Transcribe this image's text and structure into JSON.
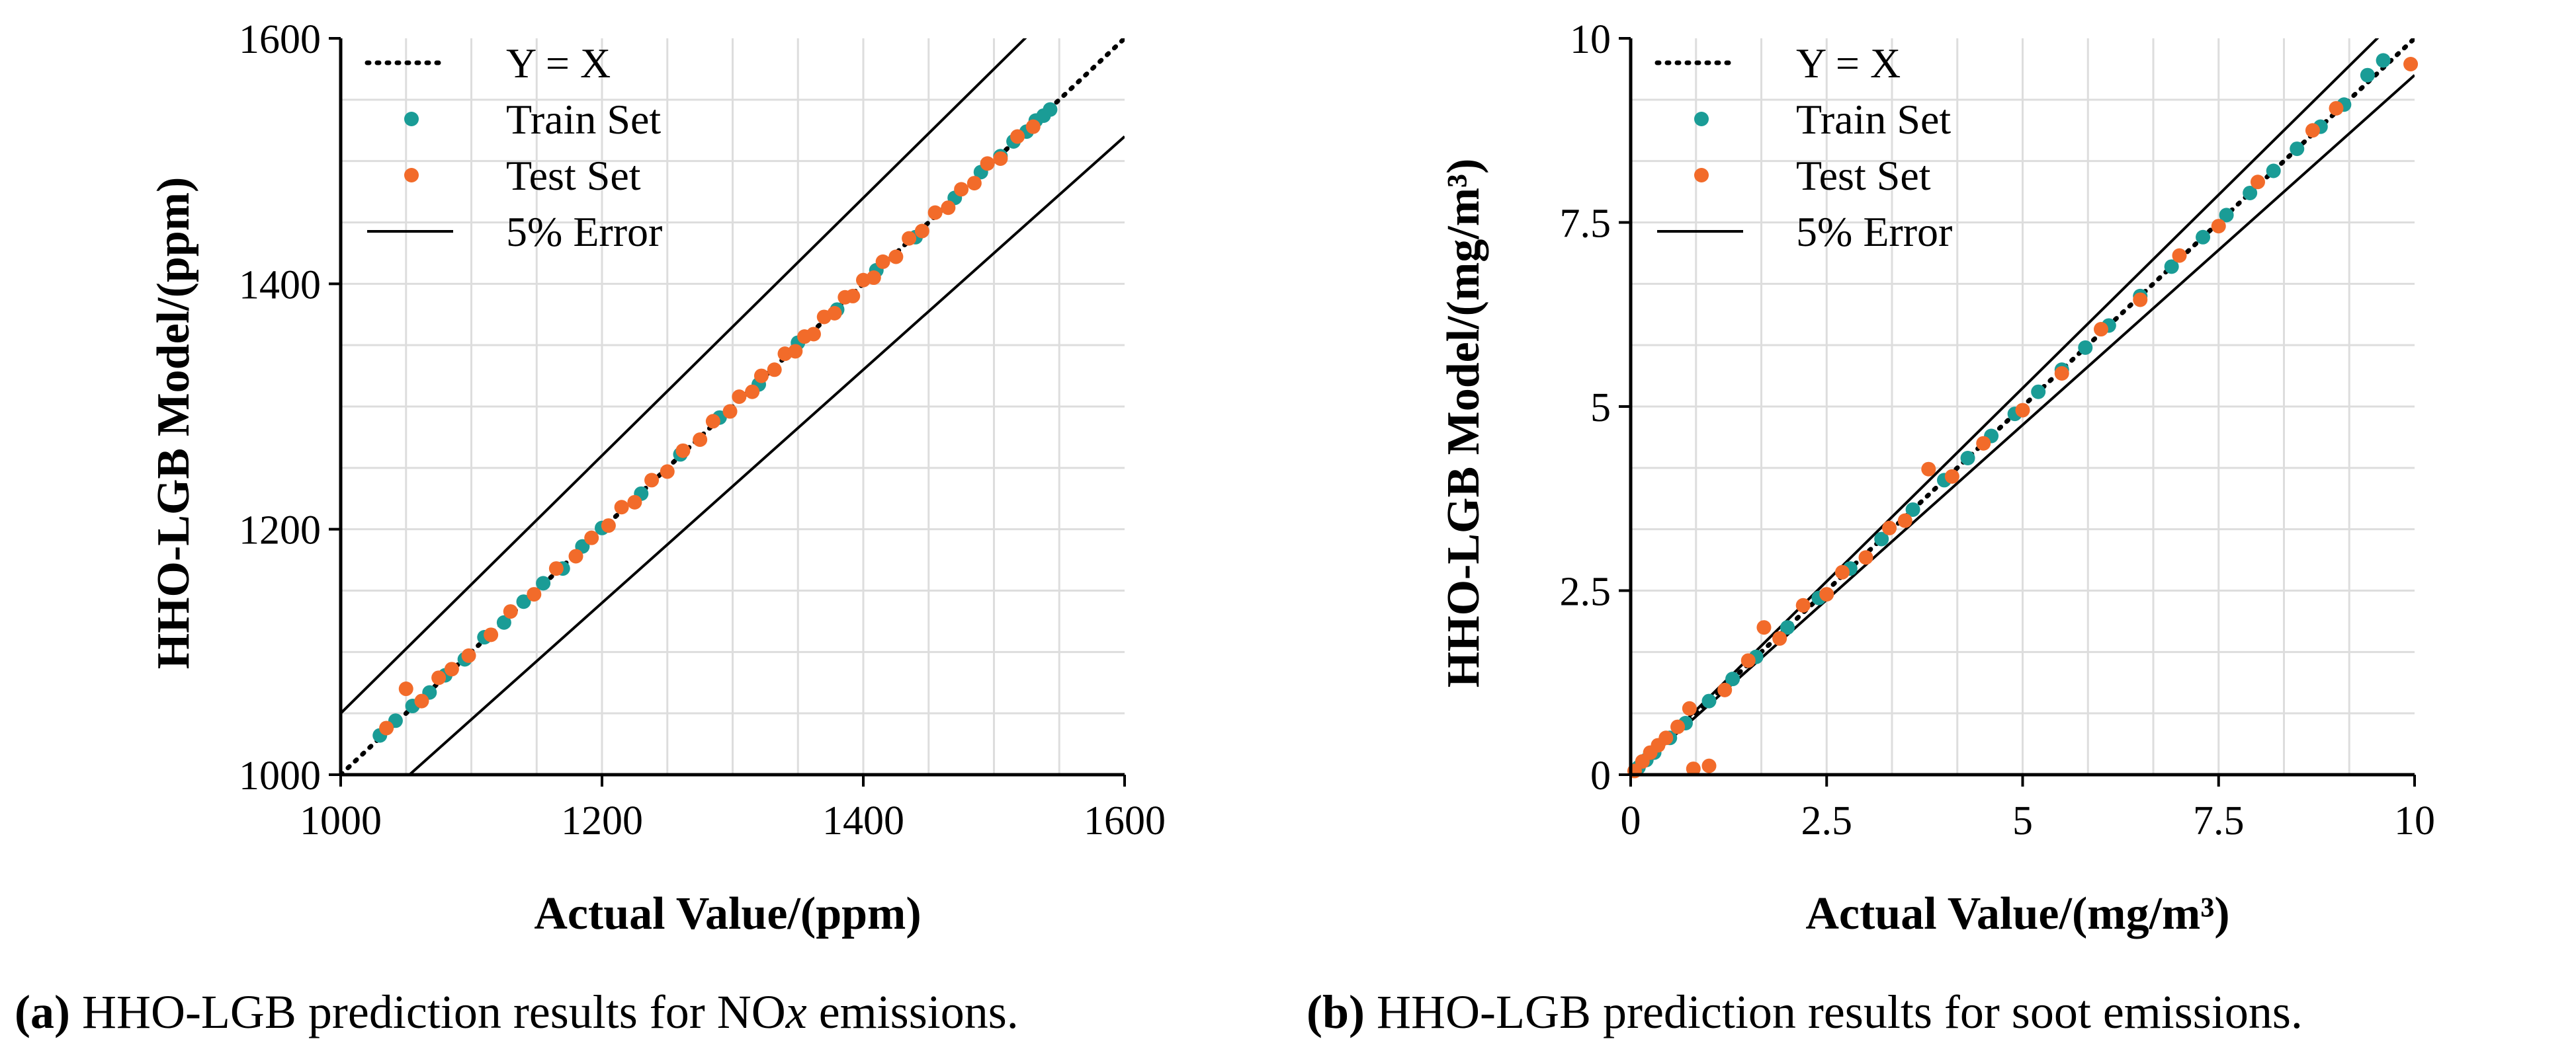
{
  "chart_data": [
    {
      "type": "scatter",
      "panel": "a",
      "xlabel": "Actual Value/(ppm)",
      "ylabel": "HHO-LGB Model/(ppm)",
      "xlim": [
        1000,
        1600
      ],
      "ylim": [
        1000,
        1600
      ],
      "x_ticks": [
        "1000",
        "1200",
        "1400",
        "1600"
      ],
      "y_ticks": [
        "1000",
        "1200",
        "1400",
        "1600"
      ],
      "grid": true,
      "legend_position": "top-left",
      "legend": [
        "Y = X",
        "Train Set",
        "Test Set",
        "5% Error"
      ],
      "series": [
        {
          "name": "Y = X",
          "style": "dotted-line",
          "color": "#000000",
          "x": [
            1000,
            1600
          ],
          "y": [
            1000,
            1600
          ]
        },
        {
          "name": "5% Error",
          "style": "solid-line",
          "color": "#000000",
          "lines": [
            {
              "x": [
                1000,
                1600
              ],
              "y": [
                1050,
                1680
              ]
            },
            {
              "x": [
                1000,
                1600
              ],
              "y": [
                950,
                1520
              ]
            }
          ]
        },
        {
          "name": "Train Set",
          "style": "points",
          "color": "#1a9c96",
          "x": [
            1030,
            1042,
            1055,
            1068,
            1080,
            1095,
            1110,
            1125,
            1140,
            1155,
            1170,
            1185,
            1200,
            1230,
            1260,
            1290,
            1320,
            1350,
            1380,
            1410,
            1440,
            1470,
            1490,
            1505,
            1515,
            1525,
            1532,
            1538,
            1543
          ],
          "y": [
            1032,
            1044,
            1056,
            1067,
            1081,
            1094,
            1112,
            1124,
            1141,
            1156,
            1168,
            1186,
            1201,
            1229,
            1261,
            1291,
            1318,
            1352,
            1379,
            1411,
            1438,
            1470,
            1491,
            1504,
            1516,
            1524,
            1533,
            1537,
            1542
          ]
        },
        {
          "name": "Test Set",
          "style": "points",
          "color": "#f26b2a",
          "x": [
            1035,
            1050,
            1062,
            1075,
            1085,
            1098,
            1115,
            1130,
            1148,
            1165,
            1180,
            1192,
            1205,
            1215,
            1225,
            1238,
            1250,
            1262,
            1275,
            1285,
            1298,
            1305,
            1315,
            1322,
            1332,
            1340,
            1348,
            1355,
            1362,
            1370,
            1378,
            1386,
            1392,
            1400,
            1408,
            1415,
            1425,
            1435,
            1445,
            1455,
            1465,
            1475,
            1485,
            1495,
            1505,
            1518,
            1530
          ],
          "y": [
            1038,
            1070,
            1060,
            1079,
            1086,
            1097,
            1114,
            1133,
            1147,
            1168,
            1178,
            1193,
            1203,
            1218,
            1222,
            1240,
            1247,
            1264,
            1273,
            1288,
            1296,
            1308,
            1312,
            1325,
            1330,
            1343,
            1345,
            1357,
            1359,
            1373,
            1376,
            1389,
            1390,
            1403,
            1405,
            1418,
            1422,
            1437,
            1443,
            1458,
            1462,
            1477,
            1482,
            1498,
            1502,
            1520,
            1528
          ]
        }
      ]
    },
    {
      "type": "scatter",
      "panel": "b",
      "xlabel": "Actual Value/(mg/m³)",
      "ylabel": "HHO-LGB Model/(mg/m³)",
      "xlim": [
        0,
        10
      ],
      "ylim": [
        0,
        10
      ],
      "x_ticks": [
        "0",
        "2.5",
        "5",
        "7.5",
        "10"
      ],
      "y_ticks": [
        "0",
        "2.5",
        "5",
        "7.5",
        "10"
      ],
      "grid": true,
      "legend_position": "top-left",
      "legend": [
        "Y = X",
        "Train Set",
        "Test Set",
        "5% Error"
      ],
      "series": [
        {
          "name": "Y = X",
          "style": "dotted-line",
          "color": "#000000",
          "x": [
            0,
            10
          ],
          "y": [
            0,
            10
          ]
        },
        {
          "name": "5% Error",
          "style": "solid-line",
          "color": "#000000",
          "lines": [
            {
              "x": [
                0,
                10
              ],
              "y": [
                0,
                10.5
              ]
            },
            {
              "x": [
                0,
                10
              ],
              "y": [
                0,
                9.5
              ]
            }
          ]
        },
        {
          "name": "Train Set",
          "style": "points",
          "color": "#1a9c96",
          "x": [
            0.1,
            0.2,
            0.3,
            0.5,
            0.7,
            1.0,
            1.3,
            1.6,
            2.0,
            2.4,
            2.8,
            3.2,
            3.6,
            4.0,
            4.3,
            4.6,
            4.9,
            5.2,
            5.5,
            5.8,
            6.1,
            6.5,
            6.9,
            7.3,
            7.6,
            7.9,
            8.2,
            8.5,
            8.8,
            9.1,
            9.4,
            9.6
          ],
          "y": [
            0.1,
            0.2,
            0.3,
            0.5,
            0.7,
            1.0,
            1.3,
            1.6,
            2.0,
            2.4,
            2.8,
            3.2,
            3.6,
            4.0,
            4.3,
            4.6,
            4.9,
            5.2,
            5.5,
            5.8,
            6.1,
            6.5,
            6.9,
            7.3,
            7.6,
            7.9,
            8.2,
            8.5,
            8.8,
            9.1,
            9.5,
            9.7
          ]
        },
        {
          "name": "Test Set",
          "style": "points",
          "color": "#f26b2a",
          "x": [
            0.05,
            0.15,
            0.25,
            0.35,
            0.45,
            0.6,
            0.75,
            0.8,
            1.0,
            1.2,
            1.5,
            1.7,
            1.9,
            2.2,
            2.5,
            2.7,
            3.0,
            3.3,
            3.5,
            3.8,
            4.1,
            4.5,
            5.0,
            5.5,
            6.0,
            6.5,
            7.0,
            7.5,
            8.0,
            8.7,
            9.0,
            9.95
          ],
          "y": [
            0.05,
            0.18,
            0.3,
            0.4,
            0.5,
            0.65,
            0.9,
            0.08,
            0.12,
            1.15,
            1.55,
            2.0,
            1.85,
            2.3,
            2.45,
            2.75,
            2.95,
            3.35,
            3.45,
            4.15,
            4.05,
            4.5,
            4.95,
            5.45,
            6.05,
            6.45,
            7.05,
            7.45,
            8.05,
            8.75,
            9.05,
            9.65
          ]
        }
      ]
    }
  ],
  "captions": {
    "a": {
      "label": "(a)",
      "text": " HHO-LGB prediction results for NO",
      "italic_suffix": "x",
      "tail": " emissions."
    },
    "b": {
      "label": "(b)",
      "text": " HHO-LGB prediction results for soot emissions."
    }
  }
}
